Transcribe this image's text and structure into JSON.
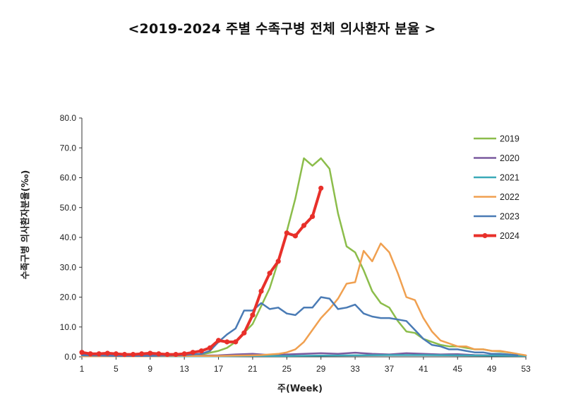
{
  "chart_data": {
    "type": "line",
    "title": "<2019-2024 주별 수족구병 전체 의사환자 분율 >",
    "xlabel": "주(Week)",
    "ylabel": "수족구병 의사환자분율(‰)",
    "xlim": [
      1,
      53
    ],
    "ylim": [
      0,
      80
    ],
    "x_ticks": [
      "1",
      "5",
      "9",
      "13",
      "17",
      "21",
      "25",
      "29",
      "33",
      "37",
      "41",
      "45",
      "49",
      "53"
    ],
    "y_ticks": [
      "0.0",
      "10.0",
      "20.0",
      "30.0",
      "40.0",
      "50.0",
      "60.0",
      "70.0",
      "80.0"
    ],
    "legend_position": "right",
    "series": [
      {
        "name": "2019",
        "color": "#8cbd4b",
        "markers": false,
        "x": [
          1,
          3,
          5,
          7,
          9,
          11,
          13,
          15,
          17,
          18,
          19,
          20,
          21,
          22,
          23,
          24,
          25,
          26,
          27,
          28,
          29,
          30,
          31,
          32,
          33,
          34,
          35,
          36,
          37,
          38,
          39,
          40,
          41,
          42,
          43,
          44,
          45,
          46,
          47,
          48,
          49,
          50,
          51,
          52
        ],
        "y": [
          0.5,
          0.5,
          0.5,
          0.5,
          0.5,
          0.5,
          0.6,
          0.8,
          2.0,
          3.0,
          5.0,
          8.0,
          11.0,
          17.0,
          23.0,
          32.0,
          42.0,
          53.0,
          66.5,
          64.0,
          66.5,
          63.0,
          48.0,
          37.0,
          35.0,
          29.0,
          22.0,
          18.0,
          16.5,
          12.0,
          8.5,
          8.0,
          6.0,
          5.0,
          4.0,
          3.5,
          3.5,
          3.0,
          2.5,
          2.5,
          2.0,
          1.8,
          1.5,
          1.0
        ]
      },
      {
        "name": "2020",
        "color": "#7a5a9e",
        "markers": false,
        "x": [
          1,
          3,
          5,
          7,
          9,
          11,
          13,
          15,
          17,
          19,
          21,
          23,
          25,
          27,
          29,
          31,
          33,
          35,
          37,
          39,
          41,
          43,
          45,
          47,
          49,
          51,
          53
        ],
        "y": [
          0.8,
          0.9,
          0.8,
          0.9,
          0.9,
          0.7,
          0.5,
          0.4,
          0.5,
          0.8,
          1.0,
          0.6,
          0.8,
          1.0,
          1.2,
          1.0,
          1.4,
          1.0,
          0.8,
          1.2,
          1.0,
          0.8,
          0.9,
          0.6,
          0.5,
          0.5,
          0.4
        ]
      },
      {
        "name": "2021",
        "color": "#3ba9b8",
        "markers": false,
        "x": [
          1,
          5,
          9,
          13,
          17,
          21,
          25,
          29,
          33,
          37,
          41,
          45,
          49,
          53
        ],
        "y": [
          0.2,
          0.2,
          0.2,
          0.2,
          0.2,
          0.3,
          0.3,
          0.4,
          0.5,
          0.6,
          0.6,
          0.5,
          0.4,
          0.3
        ]
      },
      {
        "name": "2022",
        "color": "#f0a050",
        "markers": false,
        "x": [
          1,
          5,
          9,
          13,
          17,
          19,
          21,
          22,
          23,
          24,
          25,
          26,
          27,
          28,
          29,
          30,
          31,
          32,
          33,
          34,
          35,
          36,
          37,
          38,
          39,
          40,
          41,
          42,
          43,
          44,
          45,
          46,
          47,
          48,
          49,
          50,
          51,
          52,
          53
        ],
        "y": [
          0.2,
          0.2,
          0.2,
          0.3,
          0.3,
          0.4,
          0.5,
          0.6,
          0.8,
          1.0,
          1.5,
          2.5,
          5.0,
          9.0,
          13.0,
          16.0,
          19.5,
          24.5,
          25.0,
          35.5,
          32.0,
          38.0,
          35.0,
          28.0,
          20.0,
          19.0,
          13.0,
          8.5,
          5.5,
          4.5,
          3.5,
          3.5,
          2.5,
          2.5,
          2.0,
          2.0,
          1.5,
          1.0,
          0.5
        ]
      },
      {
        "name": "2023",
        "color": "#4a7bb5",
        "markers": false,
        "x": [
          1,
          3,
          5,
          7,
          9,
          11,
          13,
          15,
          16,
          17,
          18,
          19,
          20,
          21,
          22,
          23,
          24,
          25,
          26,
          27,
          28,
          29,
          30,
          31,
          32,
          33,
          34,
          35,
          36,
          37,
          38,
          39,
          40,
          41,
          42,
          43,
          44,
          45,
          46,
          47,
          48,
          49,
          50,
          51,
          52
        ],
        "y": [
          0.5,
          0.4,
          0.3,
          0.3,
          0.3,
          0.4,
          0.6,
          1.0,
          2.0,
          5.0,
          7.5,
          9.5,
          15.5,
          15.5,
          18.0,
          16.0,
          16.5,
          14.5,
          14.0,
          16.5,
          16.5,
          20.0,
          19.5,
          16.0,
          16.5,
          17.5,
          14.5,
          13.5,
          13.0,
          13.0,
          12.5,
          12.0,
          9.0,
          6.0,
          4.0,
          3.5,
          2.5,
          2.5,
          2.0,
          1.5,
          1.5,
          1.0,
          1.0,
          0.8,
          0.5
        ]
      },
      {
        "name": "2024",
        "color": "#e8302a",
        "markers": true,
        "x": [
          1,
          2,
          3,
          4,
          5,
          6,
          7,
          8,
          9,
          10,
          11,
          12,
          13,
          14,
          15,
          16,
          17,
          18,
          19,
          20,
          21,
          22,
          23,
          24,
          25,
          26,
          27,
          28,
          29
        ],
        "y": [
          1.5,
          1.0,
          1.0,
          1.2,
          1.0,
          0.8,
          0.8,
          1.0,
          1.2,
          1.0,
          0.8,
          0.8,
          1.0,
          1.5,
          2.0,
          3.0,
          5.5,
          5.0,
          5.0,
          8.0,
          14.0,
          22.0,
          28.0,
          32.0,
          41.5,
          40.5,
          44.0,
          47.0,
          56.5
        ]
      }
    ]
  }
}
